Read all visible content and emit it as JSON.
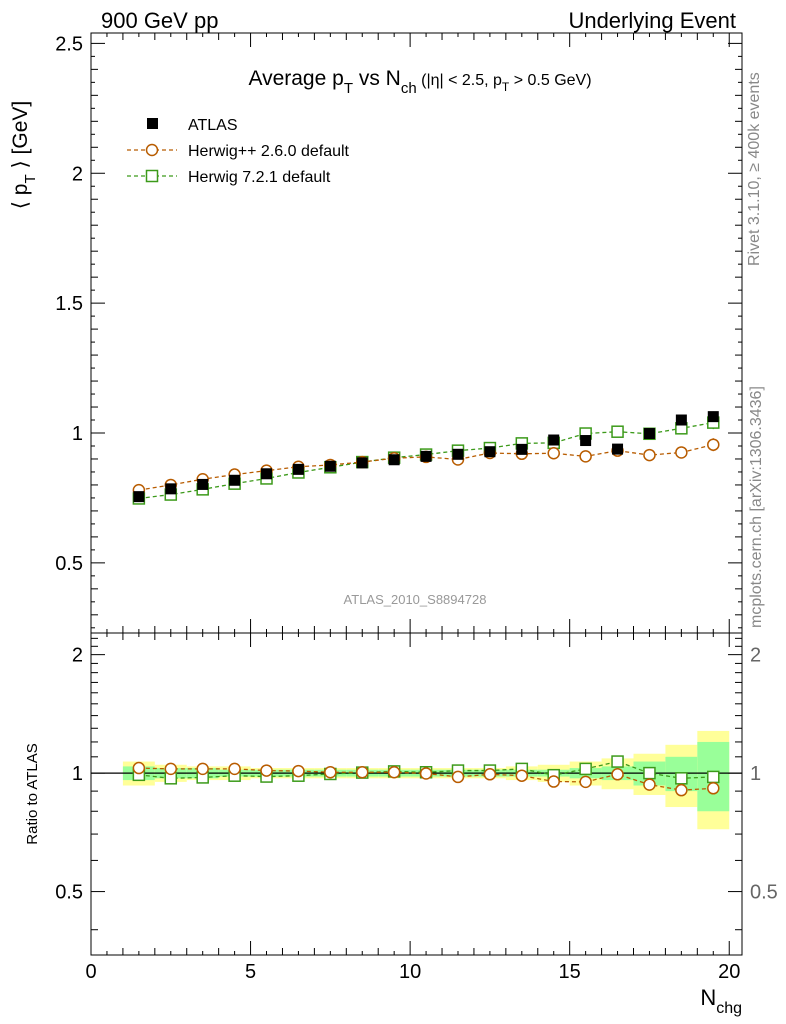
{
  "header": {
    "left": "900 GeV pp",
    "right": "Underlying Event"
  },
  "side_labels": {
    "rivet": "Rivet 3.1.10, ≥ 400k events",
    "mcplots": "mcplots.cern.ch [arXiv:1306.3436]"
  },
  "colors": {
    "atlas": "#000000",
    "herwigpp": "#b85c00",
    "herwig7": "#3c9a1a",
    "band_inner": "#99ff99",
    "band_outer": "#ffff99"
  },
  "chart_data": [
    {
      "type": "scatter",
      "title": "Average p_T vs N_ch (|η| < 2.5, p_T > 0.5 GeV)",
      "title_parts": {
        "a": "Average p",
        "a_sub": "T",
        "b": " vs N",
        "b_sub": "ch",
        "c": " (|η| < 2.5, p",
        "c_sub": "T",
        "d": " > 0.5 GeV)"
      },
      "ylabel": "⟨ p_T ⟩ [GeV]",
      "ylabel_parts": {
        "a": "⟨ p",
        "sub": "T",
        "b": " ⟩ [GeV]"
      },
      "xlim": [
        0,
        20.4
      ],
      "ylim": [
        0.23,
        2.54
      ],
      "yticks": [
        0.5,
        1,
        1.5,
        2,
        2.5
      ],
      "ytick_labels": [
        "0.5",
        "1",
        "1.5",
        "2",
        "2.5"
      ],
      "watermark": "ATLAS_2010_S8894728",
      "legend_position": "top-left",
      "x": [
        1.5,
        2.5,
        3.5,
        4.5,
        5.5,
        6.5,
        7.5,
        8.5,
        9.5,
        10.5,
        11.5,
        12.5,
        13.5,
        14.5,
        15.5,
        16.5,
        17.5,
        18.5,
        19.5
      ],
      "series": [
        {
          "name": "ATLAS",
          "marker": "filled-square",
          "y": [
            0.755,
            0.785,
            0.802,
            0.818,
            0.843,
            0.86,
            0.872,
            0.885,
            0.897,
            0.91,
            0.918,
            0.928,
            0.937,
            0.973,
            0.971,
            0.938,
            0.998,
            1.05,
            1.063
          ],
          "err": [
            0.01,
            0.01,
            0.01,
            0.01,
            0.01,
            0.01,
            0.01,
            0.01,
            0.01,
            0.01,
            0.01,
            0.01,
            0.01,
            0.01,
            0.01,
            0.012,
            0.015,
            0.02,
            0.02
          ]
        },
        {
          "name": "Herwig++ 2.6.0 default",
          "marker": "open-circle",
          "y": [
            0.78,
            0.8,
            0.822,
            0.84,
            0.855,
            0.87,
            0.877,
            0.888,
            0.903,
            0.908,
            0.898,
            0.923,
            0.92,
            0.922,
            0.91,
            0.932,
            0.915,
            0.925,
            0.955
          ],
          "err": [
            0.003,
            0.003,
            0.003,
            0.003,
            0.003,
            0.004,
            0.004,
            0.004,
            0.005,
            0.005,
            0.006,
            0.007,
            0.008,
            0.009,
            0.01,
            0.012,
            0.015,
            0.02,
            0.025
          ]
        },
        {
          "name": "Herwig 7.2.1 default",
          "marker": "open-square",
          "y": [
            0.748,
            0.763,
            0.783,
            0.805,
            0.825,
            0.848,
            0.868,
            0.888,
            0.905,
            0.917,
            0.932,
            0.942,
            0.96,
            0.962,
            0.998,
            1.005,
            0.997,
            1.018,
            1.04
          ],
          "err": [
            0.003,
            0.003,
            0.003,
            0.003,
            0.003,
            0.004,
            0.004,
            0.004,
            0.005,
            0.005,
            0.006,
            0.007,
            0.008,
            0.009,
            0.01,
            0.012,
            0.015,
            0.02,
            0.025
          ]
        }
      ]
    },
    {
      "type": "scatter",
      "ylabel": "Ratio to ATLAS",
      "xlabel": "N_chg",
      "xlabel_parts": {
        "a": "N",
        "sub": "chg"
      },
      "xlim": [
        0,
        20.4
      ],
      "ylim": [
        0.345,
        2.27
      ],
      "xticks": [
        0,
        5,
        10,
        15,
        20
      ],
      "xtick_labels": [
        "0",
        "5",
        "10",
        "15",
        "20"
      ],
      "yticks": [
        0.5,
        1,
        2
      ],
      "ytick_labels": [
        "0.5",
        "1",
        "2"
      ],
      "reference_line": 1,
      "band_inner": [
        0.04,
        0.03,
        0.03,
        0.02,
        0.02,
        0.02,
        0.02,
        0.02,
        0.02,
        0.02,
        0.02,
        0.02,
        0.02,
        0.02,
        0.03,
        0.04,
        0.07,
        0.1,
        0.2
      ],
      "band_outer": [
        0.07,
        0.05,
        0.04,
        0.04,
        0.03,
        0.03,
        0.03,
        0.03,
        0.03,
        0.03,
        0.03,
        0.03,
        0.04,
        0.05,
        0.07,
        0.09,
        0.12,
        0.18,
        0.28
      ],
      "x": [
        1.5,
        2.5,
        3.5,
        4.5,
        5.5,
        6.5,
        7.5,
        8.5,
        9.5,
        10.5,
        11.5,
        12.5,
        13.5,
        14.5,
        15.5,
        16.5,
        17.5,
        18.5,
        19.5
      ],
      "series": [
        {
          "name": "Herwig++ 2.6.0 default",
          "marker": "open-circle",
          "y": [
            1.03,
            1.025,
            1.025,
            1.025,
            1.015,
            1.012,
            1.005,
            1.005,
            1.005,
            0.998,
            0.978,
            0.993,
            0.985,
            0.952,
            0.95,
            0.993,
            0.935,
            0.905,
            0.915
          ],
          "err": [
            0.01,
            0.01,
            0.01,
            0.01,
            0.01,
            0.01,
            0.01,
            0.01,
            0.01,
            0.01,
            0.01,
            0.01,
            0.01,
            0.01,
            0.01,
            0.015,
            0.02,
            0.02,
            0.03
          ]
        },
        {
          "name": "Herwig 7.2.1 default",
          "marker": "open-square",
          "y": [
            0.99,
            0.97,
            0.975,
            0.985,
            0.98,
            0.985,
            0.995,
            1.003,
            1.01,
            1.005,
            1.015,
            1.015,
            1.025,
            0.988,
            1.025,
            1.07,
            1.0,
            0.97,
            0.978
          ],
          "err": [
            0.01,
            0.01,
            0.01,
            0.01,
            0.01,
            0.01,
            0.01,
            0.01,
            0.01,
            0.01,
            0.01,
            0.01,
            0.01,
            0.01,
            0.01,
            0.015,
            0.02,
            0.02,
            0.03
          ]
        }
      ]
    }
  ]
}
